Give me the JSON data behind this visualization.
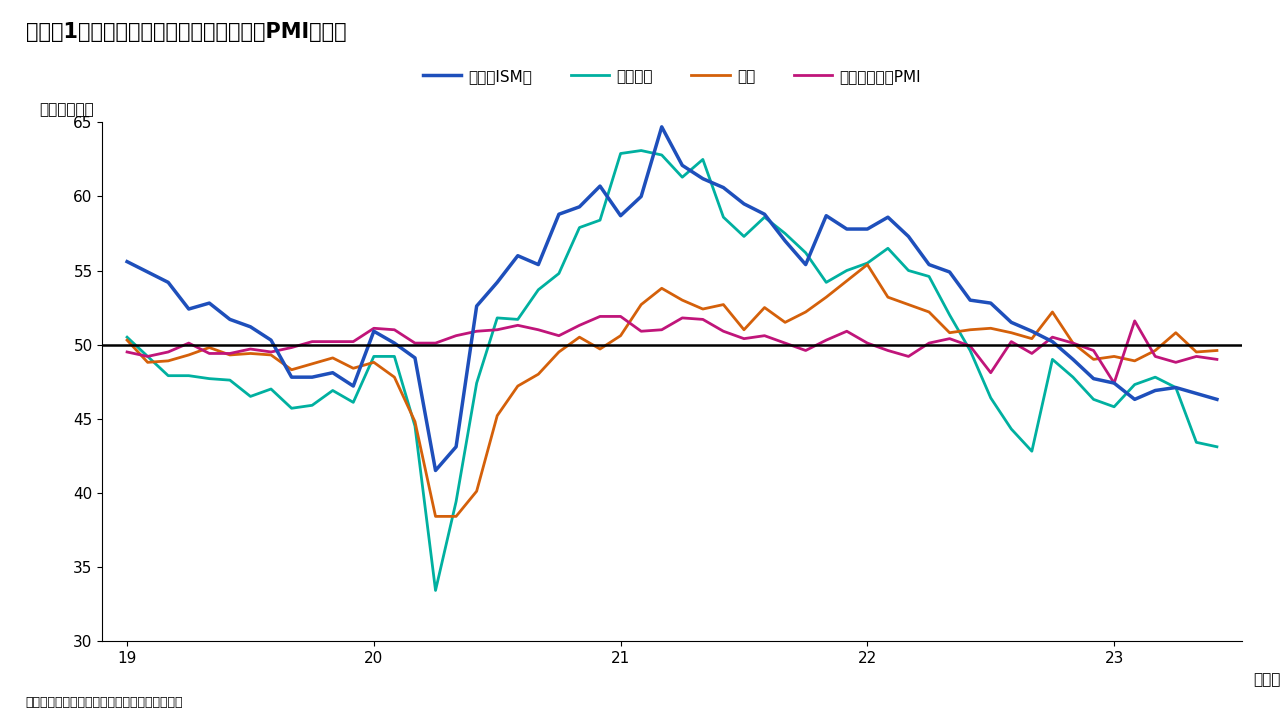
{
  "title": "（図表1）　主要国・地域における製造業PMIの推移",
  "ylabel": "（ポイント）",
  "source": "（出所）ブルームバーグよりインベスコが作成",
  "year_label": "（年）",
  "ylim": [
    30,
    65
  ],
  "yticks": [
    30,
    35,
    40,
    45,
    50,
    55,
    60,
    65
  ],
  "xtick_labels": [
    "19",
    "20",
    "21",
    "22",
    "23"
  ],
  "reference_line": 50,
  "colors": {
    "usa": "#1e4fbb",
    "euro": "#00b0a0",
    "japan": "#d4600a",
    "china": "#c0157a"
  },
  "legend": [
    "米国（ISM）",
    "ユーロ圏",
    "日本",
    "中国－政府版PMI"
  ],
  "usa": [
    55.6,
    54.9,
    54.2,
    52.4,
    52.8,
    51.7,
    51.2,
    50.3,
    47.8,
    47.8,
    48.1,
    47.2,
    50.9,
    50.1,
    49.1,
    41.5,
    43.1,
    52.6,
    54.2,
    56.0,
    55.4,
    58.8,
    59.3,
    60.7,
    58.7,
    60.0,
    64.7,
    62.1,
    61.2,
    60.6,
    59.5,
    58.8,
    57.0,
    55.4,
    58.7,
    57.8,
    57.8,
    58.6,
    57.3,
    55.4,
    54.9,
    53.0,
    52.8,
    51.5,
    50.9,
    50.2,
    49.0,
    47.7,
    47.4,
    46.3,
    46.9,
    47.1,
    46.7,
    46.3
  ],
  "euro": [
    50.5,
    49.2,
    47.9,
    47.9,
    47.7,
    47.6,
    46.5,
    47.0,
    45.7,
    45.9,
    46.9,
    46.1,
    49.2,
    49.2,
    44.5,
    33.4,
    39.4,
    47.4,
    51.8,
    51.7,
    53.7,
    54.8,
    57.9,
    58.4,
    62.9,
    63.1,
    62.8,
    61.3,
    62.5,
    58.6,
    57.3,
    58.6,
    57.5,
    56.2,
    54.2,
    55.0,
    55.5,
    56.5,
    55.0,
    54.6,
    52.0,
    49.6,
    46.4,
    44.3,
    42.8,
    49.0,
    47.8,
    46.3,
    45.8,
    47.3,
    47.8,
    47.1,
    43.4,
    43.1
  ],
  "japan": [
    50.3,
    48.8,
    48.9,
    49.3,
    49.8,
    49.3,
    49.4,
    49.3,
    48.3,
    48.7,
    49.1,
    48.4,
    48.8,
    47.8,
    44.8,
    38.4,
    38.4,
    40.1,
    45.2,
    47.2,
    48.0,
    49.5,
    50.5,
    49.7,
    50.6,
    52.7,
    53.8,
    53.0,
    52.4,
    52.7,
    51.0,
    52.5,
    51.5,
    52.2,
    53.2,
    54.3,
    55.4,
    53.2,
    52.7,
    52.2,
    50.8,
    51.0,
    51.1,
    50.8,
    50.4,
    52.2,
    50.1,
    49.0,
    49.2,
    48.9,
    49.6,
    50.8,
    49.5,
    49.6
  ],
  "china": [
    49.5,
    49.2,
    49.5,
    50.1,
    49.4,
    49.4,
    49.7,
    49.5,
    49.8,
    50.2,
    50.2,
    50.2,
    51.1,
    51.0,
    50.1,
    50.1,
    50.6,
    50.9,
    51.0,
    51.3,
    51.0,
    50.6,
    51.3,
    51.9,
    51.9,
    50.9,
    51.0,
    51.8,
    51.7,
    50.9,
    50.4,
    50.6,
    50.1,
    49.6,
    50.3,
    50.9,
    50.1,
    49.6,
    49.2,
    50.1,
    50.4,
    49.9,
    48.1,
    50.2,
    49.4,
    50.5,
    50.1,
    49.6,
    47.4,
    51.6,
    49.2,
    48.8,
    49.2,
    49.0
  ]
}
